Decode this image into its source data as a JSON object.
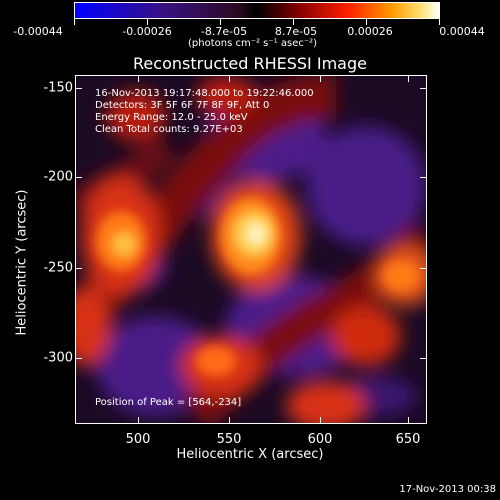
{
  "colorbar": {
    "ticks": [
      "-0.00044",
      "-0.00026",
      "-8.7e-05",
      "8.7e-05",
      "0.00026",
      "0.00044"
    ],
    "units": "(photons cm⁻² s⁻¹ asec⁻²)"
  },
  "title": "Reconstructed RHESSI Image",
  "annotations": {
    "time_range": "16-Nov-2013 19:17:48.000 to 19:22:46.000",
    "detectors": "Detectors: 3F 5F 6F 7F 8F 9F, Att 0",
    "energy": "Energy Range: 12.0 - 25.0 keV",
    "clean": "Clean     Total counts: 9.27E+03",
    "peak": "Position of Peak = [564,-234]"
  },
  "axes": {
    "xlabel": "Heliocentric X (arcsec)",
    "ylabel": "Heliocentric Y (arcsec)",
    "xticks": [
      "500",
      "550",
      "600",
      "650"
    ],
    "yticks": [
      "-150",
      "-200",
      "-250",
      "-300"
    ]
  },
  "timestamp": "17-Nov-2013 00:38",
  "colors": {
    "background": "#000000",
    "foreground": "#ffffff"
  }
}
